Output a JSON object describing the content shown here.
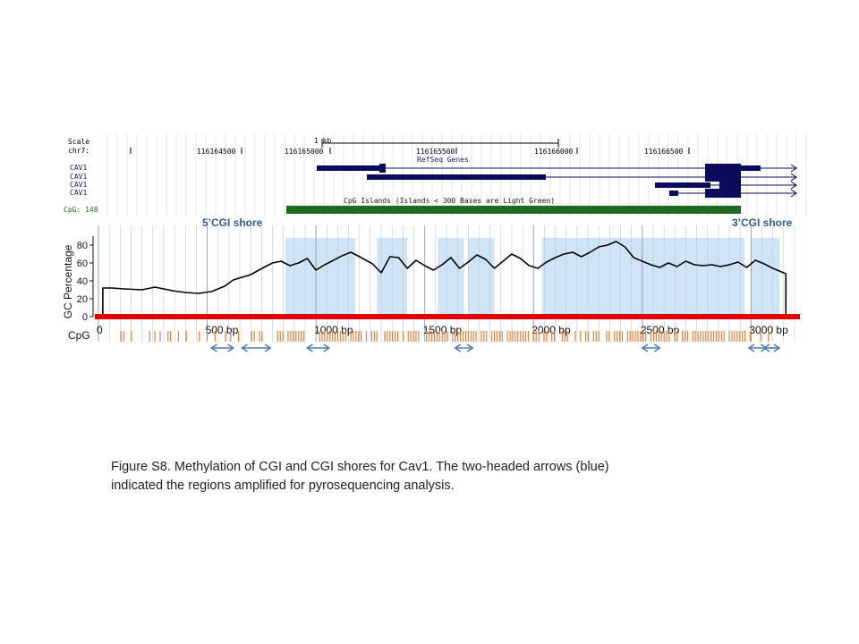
{
  "browser": {
    "scale_label": "Scale",
    "chrom_label": "chr7:",
    "scale_bar_label": "1 kb",
    "positions": [
      "116164500",
      "116165000",
      "116165500",
      "116166000",
      "116166500"
    ],
    "refseq_label": "RefSeq Genes",
    "gene_tracks": [
      "CAV1",
      "CAV1",
      "CAV1",
      "CAV1"
    ],
    "cpg_track_label": "CpG: 148",
    "cpg_island_label": "CpG Islands (Islands < 300 Bases are Light Green)",
    "colors": {
      "gene": "#0b0b5e",
      "cpg_island": "#1e6b1e",
      "cpg_label": "#1d6a1d"
    }
  },
  "shore_labels": {
    "five_prime": "5’CGI shore",
    "three_prime": "3’CGI shore"
  },
  "chart_data": {
    "type": "line",
    "ylabel": "GC Percentage",
    "y_ticks": [
      "0",
      "20",
      "40",
      "60",
      "80"
    ],
    "ylim": [
      0,
      100
    ],
    "x_ticks": [
      "0",
      "500 bp",
      "1000 bp",
      "1500 bp",
      "2000 bp",
      "2500 bp",
      "3000 bp"
    ],
    "xlim": [
      0,
      3200
    ],
    "row_label": "CpG",
    "grid": true,
    "gc_profile": {
      "x": [
        20,
        60,
        120,
        200,
        260,
        340,
        400,
        460,
        520,
        580,
        620,
        660,
        700,
        760,
        800,
        840,
        880,
        920,
        960,
        1000,
        1040,
        1080,
        1120,
        1160,
        1200,
        1260,
        1300,
        1340,
        1380,
        1420,
        1460,
        1500,
        1540,
        1580,
        1620,
        1660,
        1700,
        1740,
        1780,
        1820,
        1860,
        1900,
        1940,
        1980,
        2020,
        2060,
        2100,
        2140,
        2180,
        2220,
        2260,
        2300,
        2340,
        2380,
        2420,
        2460,
        2500,
        2540,
        2580,
        2620,
        2660,
        2700,
        2740,
        2780,
        2820,
        2860,
        2900,
        2940,
        2980,
        3020,
        3060,
        3100,
        3140,
        3160
      ],
      "y": [
        32,
        32,
        31,
        30,
        33,
        29,
        27,
        26,
        28,
        34,
        41,
        44,
        47,
        55,
        60,
        62,
        57,
        60,
        65,
        52,
        58,
        63,
        68,
        72,
        67,
        59,
        49,
        67,
        66,
        54,
        63,
        57,
        52,
        58,
        66,
        54,
        61,
        69,
        64,
        54,
        62,
        70,
        65,
        57,
        54,
        61,
        66,
        70,
        72,
        67,
        72,
        78,
        80,
        84,
        78,
        66,
        62,
        58,
        55,
        60,
        56,
        62,
        58,
        57,
        58,
        56,
        58,
        61,
        55,
        63,
        59,
        54,
        50,
        48
      ],
      "color": "#000000"
    },
    "cpg_island_regions": [
      [
        860,
        1180
      ],
      [
        1280,
        1420
      ],
      [
        1560,
        1680
      ],
      [
        1700,
        1820
      ],
      [
        2040,
        2970
      ],
      [
        3000,
        3130
      ]
    ],
    "amplified_regions": [
      [
        520,
        620
      ],
      [
        660,
        790
      ],
      [
        960,
        1060
      ],
      [
        1640,
        1720
      ],
      [
        2500,
        2580
      ],
      [
        2990,
        3070
      ],
      [
        3060,
        3130
      ]
    ],
    "colors": {
      "island_fill": "#cfe5f6",
      "baseline": "#e00000",
      "cpg_marks": "#e8803a",
      "arrow": "#4f7db8",
      "grid": "#b7c7e0"
    }
  },
  "caption": {
    "line1": "Figure S8. Methylation of CGI and CGI shores for Cav1.  The two-headed arrows (blue)",
    "line2": "indicated the regions amplified for pyrosequencing analysis."
  }
}
